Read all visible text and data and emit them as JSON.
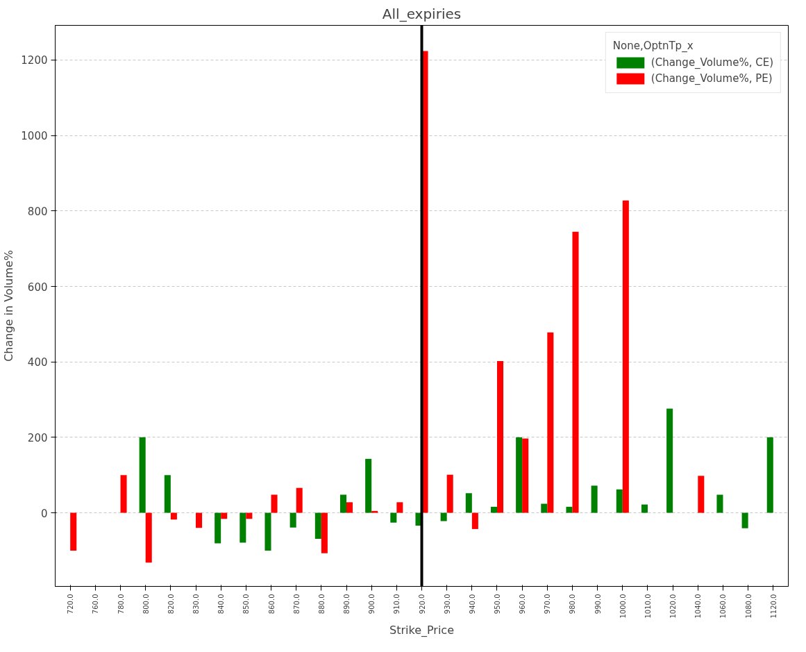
{
  "chart_data": {
    "type": "bar",
    "title": "All_expiries",
    "xlabel": "Strike_Price",
    "ylabel": "Change in Volume%",
    "legend_title": "None,OptnTp_x",
    "categories": [
      "720.0",
      "760.0",
      "780.0",
      "800.0",
      "820.0",
      "830.0",
      "840.0",
      "850.0",
      "860.0",
      "870.0",
      "880.0",
      "890.0",
      "900.0",
      "910.0",
      "920.0",
      "930.0",
      "940.0",
      "950.0",
      "960.0",
      "970.0",
      "980.0",
      "990.0",
      "1000.0",
      "1010.0",
      "1020.0",
      "1040.0",
      "1060.0",
      "1080.0",
      "1120.0"
    ],
    "series": [
      {
        "name": "(Change_Volume%, CE)",
        "color": "#008000",
        "values": [
          null,
          null,
          null,
          200,
          100,
          null,
          -81,
          -79,
          -100,
          -39,
          -69,
          48,
          143,
          -26,
          -34,
          -22,
          52,
          16,
          200,
          24,
          16,
          72,
          62,
          22,
          276,
          null,
          48,
          -41,
          200
        ]
      },
      {
        "name": "(Change_Volume%, PE)",
        "color": "#ff0000",
        "values": [
          -100,
          null,
          100,
          -132,
          -18,
          -40,
          -16,
          -16,
          48,
          66,
          -107,
          28,
          5,
          28,
          1224,
          101,
          -43,
          402,
          197,
          478,
          745,
          null,
          828,
          null,
          null,
          98,
          null,
          null,
          null
        ]
      }
    ],
    "ylim": [
      -195,
      1292
    ],
    "yticks": [
      0,
      200,
      400,
      600,
      800,
      1000,
      1200
    ],
    "grid": "y",
    "legend": "top right",
    "ref_lines": [
      {
        "axis": "x",
        "value": "920.0",
        "color": "#000000"
      }
    ]
  }
}
